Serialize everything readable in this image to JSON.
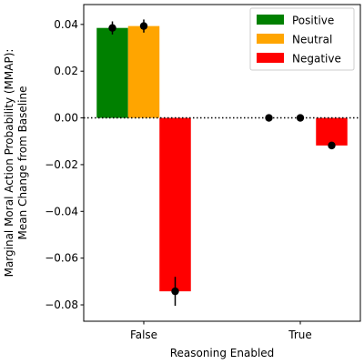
{
  "chart_data": {
    "type": "bar",
    "xlabel": "Reasoning Enabled",
    "ylabel_lines": [
      "Marginal Moral Action Probability (MMAP):",
      "Mean Change from Baseline"
    ],
    "categories": [
      "False",
      "True"
    ],
    "ylim": [
      -0.087,
      0.0485
    ],
    "yticks": [
      -0.08,
      -0.06,
      -0.04,
      -0.02,
      0.0,
      0.02,
      0.04
    ],
    "ytick_labels": [
      "−0.08",
      "−0.06",
      "−0.04",
      "−0.02",
      "0.00",
      "0.02",
      "0.04"
    ],
    "reference_line": {
      "y": 0,
      "style": "dotted",
      "color": "#000000"
    },
    "legend_position": "top-right",
    "series": [
      {
        "name": "Positive",
        "color": "#008000",
        "values": [
          0.0385,
          0.0
        ],
        "errors": [
          0.0028,
          0.0
        ]
      },
      {
        "name": "Neutral",
        "color": "#FFA500",
        "values": [
          0.0393,
          0.0
        ],
        "errors": [
          0.0028,
          0.0
        ]
      },
      {
        "name": "Negative",
        "color": "#FF0000",
        "values": [
          -0.0742,
          -0.0118
        ],
        "errors": [
          0.0062,
          0.0008
        ]
      }
    ]
  }
}
